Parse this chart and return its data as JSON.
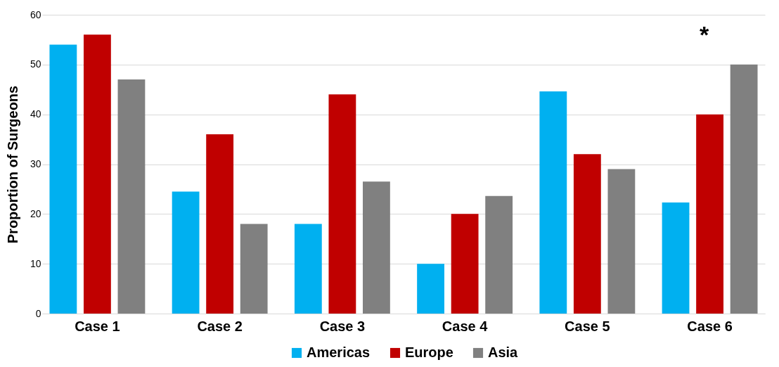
{
  "chart_data": {
    "type": "bar",
    "ylabel": "Proportion of Surgeons",
    "categories": [
      "Case 1",
      "Case 2",
      "Case 3",
      "Case 4",
      "Case 5",
      "Case 6"
    ],
    "series": [
      {
        "name": "Americas",
        "color": "#00b0f0",
        "values": [
          54,
          24.5,
          18,
          10,
          44.6,
          22.3
        ]
      },
      {
        "name": "Europe",
        "color": "#c00000",
        "values": [
          56,
          36,
          44,
          20,
          32,
          40
        ]
      },
      {
        "name": "Asia",
        "color": "#808080",
        "values": [
          47,
          18,
          26.5,
          23.6,
          29,
          50
        ]
      }
    ],
    "ylim": [
      0,
      60
    ],
    "yticks": [
      0,
      10,
      20,
      30,
      40,
      50,
      60
    ],
    "grid": "y",
    "legend": "bottom",
    "annotations": [
      "*"
    ]
  }
}
